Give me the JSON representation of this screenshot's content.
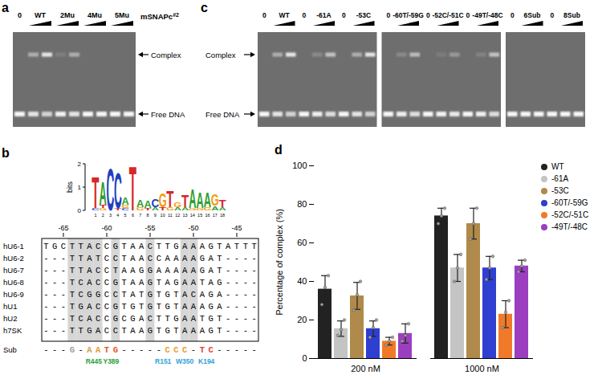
{
  "chart_data": {
    "type": "bar",
    "label": "d",
    "ylabel": "Percentage of complex (%)",
    "categories": [
      "200 nM",
      "1000 nM"
    ],
    "ylim": [
      0,
      100
    ],
    "yticks": [
      0,
      20,
      40,
      60,
      80,
      100
    ],
    "legend": "top-right",
    "series": [
      {
        "name": "WT",
        "color": "#222222",
        "values": [
          36,
          74
        ],
        "errors": [
          7,
          4
        ],
        "replicates": [
          [
            28,
            37,
            43
          ],
          [
            70,
            74,
            78
          ]
        ]
      },
      {
        "name": "-61A",
        "color": "#c4c4c4",
        "values": [
          15.5,
          47
        ],
        "errors": [
          4,
          7
        ],
        "replicates": [
          [
            12,
            15,
            20
          ],
          [
            40,
            47,
            54
          ]
        ]
      },
      {
        "name": "-53C",
        "color": "#b08a4a",
        "values": [
          32.5,
          70
        ],
        "errors": [
          7,
          8
        ],
        "replicates": [
          [
            25,
            33,
            40
          ],
          [
            62,
            70,
            78
          ]
        ]
      },
      {
        "name": "-60T/-59G",
        "color": "#2f3fd0",
        "values": [
          15.5,
          47
        ],
        "errors": [
          4,
          6
        ],
        "replicates": [
          [
            11,
            16,
            20
          ],
          [
            41,
            47,
            53
          ]
        ]
      },
      {
        "name": "-52C/-51C",
        "color": "#f07a2a",
        "values": [
          9,
          23
        ],
        "errors": [
          2,
          7
        ],
        "replicates": [
          [
            7,
            9,
            11
          ],
          [
            16,
            24,
            30
          ]
        ]
      },
      {
        "name": "-49T/-48C",
        "color": "#9b3fc0",
        "values": [
          13,
          48
        ],
        "errors": [
          5,
          3
        ],
        "replicates": [
          [
            9,
            12,
            18
          ],
          [
            45,
            48,
            51
          ]
        ]
      }
    ]
  },
  "panel_a": {
    "label": "a",
    "reagent": {
      "text": "mSNAPc",
      "superscript": "#2"
    },
    "bands": [
      "Complex",
      "Free DNA"
    ],
    "gels": [
      [
        {
          "label": "0",
          "complex": [
            0
          ]
        },
        {
          "label": "WT",
          "complex": [
            0.45,
            0.85
          ]
        },
        {
          "label": "2Mu",
          "complex": [
            0.12,
            0.45
          ]
        },
        {
          "label": "4Mu",
          "complex": [
            0,
            0
          ]
        },
        {
          "label": "5Mu",
          "complex": [
            0,
            0
          ]
        }
      ]
    ]
  },
  "panel_c": {
    "label": "c",
    "bands": [
      "Complex",
      "Free DNA"
    ],
    "gels": [
      [
        {
          "label": "0",
          "complex": [
            0
          ]
        },
        {
          "label": "WT",
          "complex": [
            0.45,
            0.85
          ]
        },
        {
          "label": "0",
          "complex": [
            0
          ]
        },
        {
          "label": "-61A",
          "complex": [
            0.2,
            0.6
          ]
        },
        {
          "label": "0",
          "complex": [
            0
          ]
        },
        {
          "label": "-53C",
          "complex": [
            0.45,
            0.85
          ]
        }
      ],
      [
        {
          "label": "0",
          "complex": [
            0
          ]
        },
        {
          "label": "-60T/-59G",
          "complex": [
            0.2,
            0.55
          ]
        },
        {
          "label": "0",
          "complex": [
            0
          ]
        },
        {
          "label": "-52C/-51C",
          "complex": [
            0.1,
            0.3
          ]
        },
        {
          "label": "0",
          "complex": [
            0
          ]
        },
        {
          "label": "-49T/-48C",
          "complex": [
            0.15,
            0.6
          ]
        }
      ],
      [
        {
          "label": "0",
          "complex": [
            0
          ]
        },
        {
          "label": "6Sub",
          "complex": [
            0,
            0
          ]
        },
        {
          "label": "0",
          "complex": [
            0
          ]
        },
        {
          "label": "8Sub",
          "complex": [
            0,
            0
          ]
        }
      ]
    ]
  },
  "panel_b": {
    "label": "b",
    "logo": {
      "ylabel": "bits",
      "ylim": [
        0,
        2
      ],
      "yticks": [
        0,
        1,
        2
      ],
      "xticks": [
        1,
        2,
        3,
        4,
        5,
        6,
        7,
        8,
        9,
        10,
        11,
        12,
        13,
        14,
        15,
        16,
        17,
        18
      ],
      "base_colors": {
        "A": "#2ca02c",
        "C": "#1f3fbf",
        "G": "#f39c12",
        "T": "#d62728"
      },
      "columns": [
        [
          {
            "base": "C",
            "bits": 0.1
          },
          {
            "base": "T",
            "bits": 1.4
          }
        ],
        [
          {
            "base": "G",
            "bits": 0.1
          },
          {
            "base": "T",
            "bits": 0.15
          },
          {
            "base": "A",
            "bits": 1.0
          }
        ],
        [
          {
            "base": "C",
            "bits": 1.85
          }
        ],
        [
          {
            "base": "T",
            "bits": 0.1
          },
          {
            "base": "C",
            "bits": 1.6
          }
        ],
        [
          {
            "base": "C",
            "bits": 0.1
          },
          {
            "base": "G",
            "bits": 0.15
          },
          {
            "base": "A",
            "bits": 0.3
          }
        ],
        [
          {
            "base": "T",
            "bits": 1.95
          }
        ],
        [
          {
            "base": "G",
            "bits": 0.15
          },
          {
            "base": "A",
            "bits": 0.3
          }
        ],
        [
          {
            "base": "T",
            "bits": 0.1
          },
          {
            "base": "A",
            "bits": 0.3
          }
        ],
        [
          {
            "base": "A",
            "bits": 0.15
          },
          {
            "base": "C",
            "bits": 0.35
          }
        ],
        [
          {
            "base": "T",
            "bits": 0.15
          },
          {
            "base": "G",
            "bits": 0.6
          }
        ],
        [
          {
            "base": "G",
            "bits": 0.15
          },
          {
            "base": "T",
            "bits": 0.75
          }
        ],
        [
          {
            "base": "A",
            "bits": 0.15
          },
          {
            "base": "G",
            "bits": 0.25
          }
        ],
        [
          {
            "base": "A",
            "bits": 0.15
          },
          {
            "base": "T",
            "bits": 0.55
          }
        ],
        [
          {
            "base": "G",
            "bits": 0.1
          },
          {
            "base": "A",
            "bits": 0.85
          }
        ],
        [
          {
            "base": "G",
            "bits": 0.1
          },
          {
            "base": "A",
            "bits": 0.7
          }
        ],
        [
          {
            "base": "G",
            "bits": 0.15
          },
          {
            "base": "A",
            "bits": 0.65
          }
        ],
        [
          {
            "base": "A",
            "bits": 0.2
          },
          {
            "base": "G",
            "bits": 0.5
          }
        ],
        [
          {
            "base": "A",
            "bits": 0.15
          },
          {
            "base": "T",
            "bits": 0.3
          }
        ]
      ]
    },
    "alignment": {
      "xlim": [
        -67,
        -43
      ],
      "xticks": [
        -65,
        -60,
        -55,
        -50,
        -45
      ],
      "shaded": [
        -64,
        -63,
        -62,
        -61,
        -59,
        -55,
        -51,
        -50
      ],
      "rows": [
        {
          "name": "hU6-1",
          "sequence": "TGCTTACCGTAACTTGAAAGTATTT"
        },
        {
          "name": "hU6-2",
          "sequence": "---TTATCCTAACCAAAAGAT----"
        },
        {
          "name": "hU6-7",
          "sequence": "---TTACCTAAGGAAAAAGAT----"
        },
        {
          "name": "hU6-8",
          "sequence": "---TCACCGTAAGTAGAATAG----"
        },
        {
          "name": "hU6-9",
          "sequence": "---TCGGCCTATGTGTACAGA----"
        },
        {
          "name": "hU1",
          "sequence": "---TGACCGTGTGTGTAAAGA----"
        },
        {
          "name": "hU2",
          "sequence": "---TCACCGCGACTTGAATGT----"
        },
        {
          "name": "h7SK",
          "sequence": "---TTGACCTAAGTGTAAAGT----"
        }
      ]
    },
    "substitution": {
      "name": "Sub",
      "sequence": "---G-AATG-----CCC-TC-----",
      "base_colors": [
        "#9e9e9e",
        "#c8a14e",
        "#e39a2d",
        "#e2572b",
        "#e2572b",
        "#eb9b2f",
        "#eb9b2f",
        "#eb9b2f",
        "#e0452a",
        "#e0452a"
      ],
      "residues": [
        {
          "text": "R445",
          "position": -61.5,
          "color": "#2a9d3a"
        },
        {
          "text": "Y389",
          "position": -59.5,
          "color": "#2a9d3a"
        },
        {
          "text": "R151",
          "position": -53.5,
          "color": "#2f9fd8"
        },
        {
          "text": "W350",
          "position": -51,
          "color": "#2f9fd8"
        },
        {
          "text": "K194",
          "position": -48.5,
          "color": "#2f9fd8"
        }
      ]
    }
  }
}
